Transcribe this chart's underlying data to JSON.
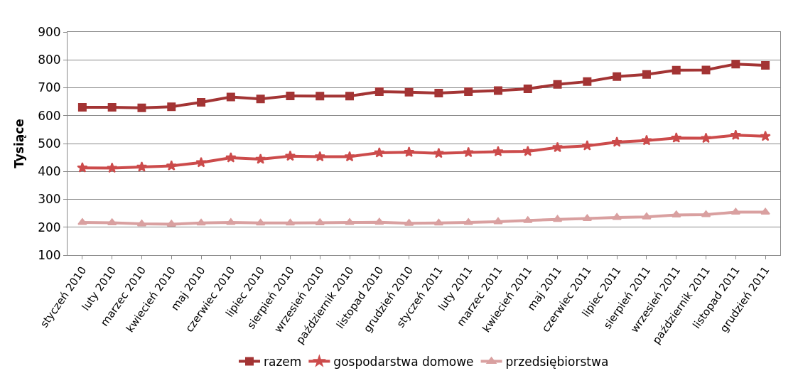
{
  "chart_data": {
    "type": "line",
    "ylabel": "Tysiące",
    "categories": [
      "styczeń 2010",
      "luty 2010",
      "marzec 2010",
      "kwiecień 2010",
      "maj 2010",
      "czerwiec 2010",
      "lipiec 2010",
      "sierpień 2010",
      "wrzesień 2010",
      "październik 2010",
      "listopad 2010",
      "grudzień 2010",
      "styczeń 2011",
      "luty 2011",
      "marzec 2011",
      "kwiecień 2011",
      "maj 2011",
      "czerwiec 2011",
      "lipiec 2011",
      "sierpień 2011",
      "wrzesień 2011",
      "październik 2011",
      "listopad 2011",
      "grudzień 2011"
    ],
    "series": [
      {
        "name": "razem",
        "color": "#a33434",
        "marker": "square",
        "values": [
          630,
          630,
          628,
          632,
          648,
          667,
          660,
          671,
          670,
          670,
          686,
          684,
          681,
          686,
          690,
          696,
          712,
          722,
          740,
          748,
          763,
          764,
          785,
          780
        ]
      },
      {
        "name": "gospodarstwa domowe",
        "color": "#cc4b4b",
        "marker": "star",
        "values": [
          413,
          412,
          416,
          420,
          432,
          449,
          444,
          455,
          453,
          453,
          467,
          469,
          465,
          468,
          471,
          472,
          486,
          492,
          505,
          511,
          520,
          519,
          530,
          526
        ]
      },
      {
        "name": "przedsiębiorstwa",
        "color": "#d9a0a0",
        "marker": "triangle",
        "values": [
          217,
          216,
          212,
          211,
          215,
          217,
          215,
          215,
          216,
          217,
          218,
          214,
          215,
          217,
          220,
          224,
          228,
          231,
          235,
          237,
          244,
          245,
          254,
          254
        ]
      }
    ],
    "ylim": [
      100,
      900
    ],
    "yticks": [
      100,
      200,
      300,
      400,
      500,
      600,
      700,
      800,
      900
    ],
    "grid": "y",
    "legend": "bottom",
    "line_style": "solid"
  }
}
